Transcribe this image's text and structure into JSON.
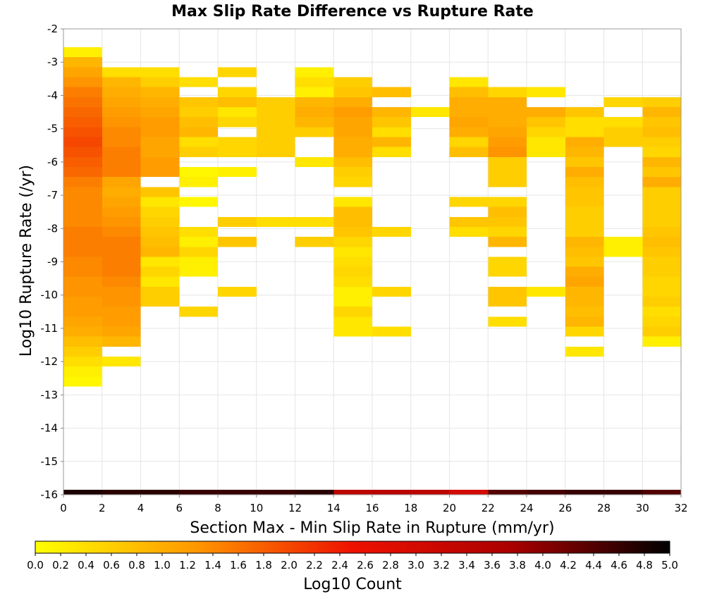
{
  "chart_data": {
    "type": "heatmap",
    "title": "Max Slip Rate Difference vs Rupture Rate",
    "xlabel": "Section Max - Min Slip Rate in Rupture (mm/yr)",
    "ylabel": "Log10 Rupture Rate (/yr)",
    "colorbar_label": "Log10 Count",
    "xlim": [
      0,
      32
    ],
    "ylim": [
      -16,
      -2
    ],
    "x_ticks": [
      "0",
      "2",
      "4",
      "6",
      "8",
      "10",
      "12",
      "14",
      "16",
      "18",
      "20",
      "22",
      "24",
      "26",
      "28",
      "30",
      "32"
    ],
    "y_ticks": [
      "-2",
      "-3",
      "-4",
      "-5",
      "-6",
      "-7",
      "-8",
      "-9",
      "-10",
      "-11",
      "-12",
      "-13",
      "-14",
      "-15",
      "-16"
    ],
    "colorbar_ticks": [
      "0.0",
      "0.2",
      "0.4",
      "0.6",
      "0.8",
      "1.0",
      "1.2",
      "1.4",
      "1.6",
      "1.8",
      "2.0",
      "2.2",
      "2.4",
      "2.6",
      "2.8",
      "3.0",
      "3.2",
      "3.4",
      "3.6",
      "3.8",
      "4.0",
      "4.2",
      "4.4",
      "4.6",
      "4.8",
      "5.0"
    ],
    "color_range": [
      0,
      5
    ],
    "colormap": [
      "#ffff00",
      "#ff9900",
      "#ee1100",
      "#aa0000",
      "#000000"
    ],
    "grid": true,
    "x_bin_width": 2,
    "y_bin_width": 0.3,
    "cells": [
      [
        0,
        -2.7,
        0.2
      ],
      [
        0,
        -3.0,
        0.9
      ],
      [
        0,
        -3.3,
        1.1
      ],
      [
        0,
        -3.6,
        1.3
      ],
      [
        0,
        -3.9,
        1.5
      ],
      [
        0,
        -4.2,
        1.6
      ],
      [
        0,
        -4.5,
        1.7
      ],
      [
        0,
        -4.8,
        1.8
      ],
      [
        0,
        -5.1,
        1.9
      ],
      [
        0,
        -5.4,
        2.0
      ],
      [
        0,
        -5.7,
        1.9
      ],
      [
        0,
        -6.0,
        1.8
      ],
      [
        0,
        -6.3,
        1.7
      ],
      [
        0,
        -6.6,
        1.5
      ],
      [
        0,
        -6.9,
        1.4
      ],
      [
        0,
        -7.2,
        1.4
      ],
      [
        0,
        -7.5,
        1.4
      ],
      [
        0,
        -7.8,
        1.4
      ],
      [
        0,
        -8.1,
        1.5
      ],
      [
        0,
        -8.4,
        1.5
      ],
      [
        0,
        -8.7,
        1.5
      ],
      [
        0,
        -9.0,
        1.4
      ],
      [
        0,
        -9.3,
        1.4
      ],
      [
        0,
        -9.6,
        1.3
      ],
      [
        0,
        -9.9,
        1.3
      ],
      [
        0,
        -10.2,
        1.2
      ],
      [
        0,
        -10.5,
        1.2
      ],
      [
        0,
        -10.8,
        1.1
      ],
      [
        0,
        -11.1,
        1.0
      ],
      [
        0,
        -11.4,
        0.8
      ],
      [
        0,
        -11.7,
        0.6
      ],
      [
        0,
        -12.0,
        0.4
      ],
      [
        0,
        -12.3,
        0.2
      ],
      [
        0,
        -12.6,
        0.1
      ],
      [
        2,
        -3.3,
        0.4
      ],
      [
        2,
        -3.6,
        0.9
      ],
      [
        2,
        -3.9,
        1.0
      ],
      [
        2,
        -4.2,
        1.1
      ],
      [
        2,
        -4.5,
        1.2
      ],
      [
        2,
        -4.8,
        1.3
      ],
      [
        2,
        -5.1,
        1.4
      ],
      [
        2,
        -5.4,
        1.4
      ],
      [
        2,
        -5.7,
        1.5
      ],
      [
        2,
        -6.0,
        1.5
      ],
      [
        2,
        -6.3,
        1.5
      ],
      [
        2,
        -6.6,
        1.1
      ],
      [
        2,
        -6.9,
        1.0
      ],
      [
        2,
        -7.2,
        1.1
      ],
      [
        2,
        -7.5,
        1.2
      ],
      [
        2,
        -7.8,
        1.3
      ],
      [
        2,
        -8.1,
        1.4
      ],
      [
        2,
        -8.4,
        1.5
      ],
      [
        2,
        -8.7,
        1.5
      ],
      [
        2,
        -9.0,
        1.5
      ],
      [
        2,
        -9.3,
        1.5
      ],
      [
        2,
        -9.6,
        1.4
      ],
      [
        2,
        -9.9,
        1.3
      ],
      [
        2,
        -10.2,
        1.3
      ],
      [
        2,
        -10.5,
        1.2
      ],
      [
        2,
        -10.8,
        1.2
      ],
      [
        2,
        -11.1,
        1.1
      ],
      [
        2,
        -11.4,
        0.9
      ],
      [
        2,
        -12.0,
        0.3
      ],
      [
        4,
        -3.3,
        0.4
      ],
      [
        4,
        -3.6,
        0.6
      ],
      [
        4,
        -3.9,
        0.9
      ],
      [
        4,
        -4.2,
        1.0
      ],
      [
        4,
        -4.5,
        1.1
      ],
      [
        4,
        -4.8,
        1.2
      ],
      [
        4,
        -5.1,
        1.2
      ],
      [
        4,
        -5.4,
        1.1
      ],
      [
        4,
        -5.7,
        1.1
      ],
      [
        4,
        -6.0,
        1.2
      ],
      [
        4,
        -6.3,
        1.2
      ],
      [
        4,
        -6.9,
        0.7
      ],
      [
        4,
        -7.2,
        0.3
      ],
      [
        4,
        -7.5,
        0.5
      ],
      [
        4,
        -7.8,
        0.6
      ],
      [
        4,
        -8.1,
        0.7
      ],
      [
        4,
        -8.4,
        0.8
      ],
      [
        4,
        -8.7,
        0.9
      ],
      [
        4,
        -9.0,
        0.3
      ],
      [
        4,
        -9.3,
        0.5
      ],
      [
        4,
        -9.6,
        0.3
      ],
      [
        4,
        -9.9,
        0.6
      ],
      [
        4,
        -10.2,
        0.6
      ],
      [
        6,
        -3.6,
        0.4
      ],
      [
        6,
        -4.2,
        0.7
      ],
      [
        6,
        -4.5,
        0.6
      ],
      [
        6,
        -4.8,
        0.8
      ],
      [
        6,
        -5.1,
        0.9
      ],
      [
        6,
        -5.4,
        0.4
      ],
      [
        6,
        -5.7,
        0.6
      ],
      [
        6,
        -6.3,
        0.1
      ],
      [
        6,
        -6.6,
        0.2
      ],
      [
        6,
        -7.2,
        0.1
      ],
      [
        6,
        -8.1,
        0.4
      ],
      [
        6,
        -8.4,
        0.2
      ],
      [
        6,
        -8.7,
        0.5
      ],
      [
        6,
        -9.0,
        0.2
      ],
      [
        6,
        -9.3,
        0.2
      ],
      [
        6,
        -10.5,
        0.5
      ],
      [
        8,
        -3.3,
        0.5
      ],
      [
        8,
        -3.9,
        0.5
      ],
      [
        8,
        -4.2,
        0.8
      ],
      [
        8,
        -4.5,
        0.3
      ],
      [
        8,
        -4.8,
        0.5
      ],
      [
        8,
        -5.4,
        0.5
      ],
      [
        8,
        -5.7,
        0.5
      ],
      [
        8,
        -6.3,
        0.2
      ],
      [
        8,
        -7.8,
        0.6
      ],
      [
        8,
        -8.4,
        0.7
      ],
      [
        8,
        -9.9,
        0.5
      ],
      [
        10,
        -4.2,
        0.6
      ],
      [
        10,
        -4.5,
        0.6
      ],
      [
        10,
        -4.8,
        0.6
      ],
      [
        10,
        -5.1,
        0.6
      ],
      [
        10,
        -5.4,
        0.6
      ],
      [
        10,
        -5.7,
        0.6
      ],
      [
        10,
        -7.8,
        0.4
      ],
      [
        12,
        -3.3,
        0.2
      ],
      [
        12,
        -3.6,
        0.4
      ],
      [
        12,
        -3.9,
        0.2
      ],
      [
        12,
        -4.2,
        0.9
      ],
      [
        12,
        -4.5,
        1.0
      ],
      [
        12,
        -4.8,
        0.9
      ],
      [
        12,
        -5.1,
        0.6
      ],
      [
        12,
        -6.0,
        0.3
      ],
      [
        12,
        -7.8,
        0.4
      ],
      [
        12,
        -8.4,
        0.6
      ],
      [
        14,
        -3.6,
        0.6
      ],
      [
        14,
        -3.9,
        0.7
      ],
      [
        14,
        -4.2,
        1.0
      ],
      [
        14,
        -4.5,
        1.2
      ],
      [
        14,
        -4.8,
        1.1
      ],
      [
        14,
        -5.1,
        1.1
      ],
      [
        14,
        -5.4,
        1.0
      ],
      [
        14,
        -5.7,
        1.0
      ],
      [
        14,
        -6.0,
        0.8
      ],
      [
        14,
        -6.3,
        0.6
      ],
      [
        14,
        -6.6,
        0.5
      ],
      [
        14,
        -7.2,
        0.3
      ],
      [
        14,
        -7.5,
        0.8
      ],
      [
        14,
        -7.8,
        0.8
      ],
      [
        14,
        -8.1,
        0.7
      ],
      [
        14,
        -8.4,
        0.5
      ],
      [
        14,
        -8.7,
        0.3
      ],
      [
        14,
        -9.0,
        0.4
      ],
      [
        14,
        -9.3,
        0.5
      ],
      [
        14,
        -9.6,
        0.4
      ],
      [
        14,
        -9.9,
        0.2
      ],
      [
        14,
        -10.2,
        0.2
      ],
      [
        14,
        -10.5,
        0.5
      ],
      [
        14,
        -10.8,
        0.3
      ],
      [
        14,
        -11.1,
        0.3
      ],
      [
        16,
        -3.9,
        0.8
      ],
      [
        16,
        -4.5,
        0.9
      ],
      [
        16,
        -4.8,
        0.7
      ],
      [
        16,
        -5.1,
        0.4
      ],
      [
        16,
        -5.4,
        0.9
      ],
      [
        16,
        -5.7,
        0.4
      ],
      [
        16,
        -8.1,
        0.5
      ],
      [
        16,
        -9.9,
        0.5
      ],
      [
        16,
        -11.1,
        0.4
      ],
      [
        18,
        -4.5,
        0.3
      ],
      [
        20,
        -3.6,
        0.3
      ],
      [
        20,
        -3.9,
        0.8
      ],
      [
        20,
        -4.2,
        1.0
      ],
      [
        20,
        -4.5,
        1.0
      ],
      [
        20,
        -4.8,
        1.1
      ],
      [
        20,
        -5.1,
        1.0
      ],
      [
        20,
        -5.4,
        0.5
      ],
      [
        20,
        -5.7,
        0.8
      ],
      [
        20,
        -7.2,
        0.5
      ],
      [
        20,
        -7.8,
        0.7
      ],
      [
        20,
        -8.1,
        0.4
      ],
      [
        22,
        -3.9,
        0.5
      ],
      [
        22,
        -4.2,
        1.0
      ],
      [
        22,
        -4.5,
        1.0
      ],
      [
        22,
        -4.8,
        1.0
      ],
      [
        22,
        -5.1,
        1.1
      ],
      [
        22,
        -5.4,
        1.2
      ],
      [
        22,
        -5.7,
        1.3
      ],
      [
        22,
        -6.0,
        0.6
      ],
      [
        22,
        -6.3,
        0.6
      ],
      [
        22,
        -6.6,
        0.6
      ],
      [
        22,
        -7.2,
        0.5
      ],
      [
        22,
        -7.5,
        0.8
      ],
      [
        22,
        -7.8,
        0.7
      ],
      [
        22,
        -8.1,
        0.5
      ],
      [
        22,
        -8.4,
        0.9
      ],
      [
        22,
        -9.0,
        0.5
      ],
      [
        22,
        -9.3,
        0.5
      ],
      [
        22,
        -9.9,
        0.7
      ],
      [
        22,
        -10.2,
        0.7
      ],
      [
        22,
        -10.8,
        0.4
      ],
      [
        24,
        -3.9,
        0.3
      ],
      [
        24,
        -4.5,
        1.0
      ],
      [
        24,
        -4.8,
        0.7
      ],
      [
        24,
        -5.1,
        0.5
      ],
      [
        24,
        -5.4,
        0.3
      ],
      [
        24,
        -5.7,
        0.3
      ],
      [
        24,
        -9.9,
        0.3
      ],
      [
        26,
        -4.5,
        0.7
      ],
      [
        26,
        -4.8,
        0.4
      ],
      [
        26,
        -5.1,
        0.4
      ],
      [
        26,
        -5.4,
        1.0
      ],
      [
        26,
        -5.7,
        0.9
      ],
      [
        26,
        -6.0,
        0.7
      ],
      [
        26,
        -6.3,
        1.0
      ],
      [
        26,
        -6.6,
        0.8
      ],
      [
        26,
        -6.9,
        0.7
      ],
      [
        26,
        -7.2,
        0.7
      ],
      [
        26,
        -7.5,
        0.6
      ],
      [
        26,
        -7.8,
        0.6
      ],
      [
        26,
        -8.1,
        0.6
      ],
      [
        26,
        -8.4,
        0.9
      ],
      [
        26,
        -8.7,
        0.8
      ],
      [
        26,
        -9.0,
        0.7
      ],
      [
        26,
        -9.3,
        1.0
      ],
      [
        26,
        -9.6,
        1.1
      ],
      [
        26,
        -9.9,
        0.9
      ],
      [
        26,
        -10.2,
        0.9
      ],
      [
        26,
        -10.5,
        0.8
      ],
      [
        26,
        -10.8,
        0.9
      ],
      [
        26,
        -11.1,
        0.5
      ],
      [
        26,
        -11.7,
        0.3
      ],
      [
        28,
        -4.2,
        0.5
      ],
      [
        28,
        -4.8,
        0.4
      ],
      [
        28,
        -5.1,
        0.6
      ],
      [
        28,
        -5.4,
        0.6
      ],
      [
        28,
        -8.4,
        0.2
      ],
      [
        28,
        -8.7,
        0.2
      ],
      [
        30,
        -4.2,
        0.6
      ],
      [
        30,
        -4.5,
        0.9
      ],
      [
        30,
        -4.8,
        0.7
      ],
      [
        30,
        -5.1,
        0.8
      ],
      [
        30,
        -5.4,
        0.6
      ],
      [
        30,
        -5.7,
        0.5
      ],
      [
        30,
        -6.0,
        0.9
      ],
      [
        30,
        -6.3,
        0.7
      ],
      [
        30,
        -6.6,
        1.0
      ],
      [
        30,
        -6.9,
        0.6
      ],
      [
        30,
        -7.2,
        0.6
      ],
      [
        30,
        -7.5,
        0.6
      ],
      [
        30,
        -7.8,
        0.6
      ],
      [
        30,
        -8.1,
        0.7
      ],
      [
        30,
        -8.4,
        0.8
      ],
      [
        30,
        -8.7,
        0.7
      ],
      [
        30,
        -9.0,
        0.6
      ],
      [
        30,
        -9.3,
        0.6
      ],
      [
        30,
        -9.6,
        0.5
      ],
      [
        30,
        -9.9,
        0.5
      ],
      [
        30,
        -10.2,
        0.6
      ],
      [
        30,
        -10.5,
        0.4
      ],
      [
        30,
        -10.8,
        0.5
      ],
      [
        30,
        -11.1,
        0.6
      ],
      [
        30,
        -11.4,
        0.2
      ]
    ],
    "bottom_row_y": -16,
    "bottom_row_values": [
      4.8,
      4.7,
      4.7,
      4.6,
      4.6,
      4.6,
      4.7,
      3.4,
      3.5,
      3.4,
      3.0,
      4.4,
      4.5,
      4.6,
      4.6,
      4.4
    ]
  }
}
